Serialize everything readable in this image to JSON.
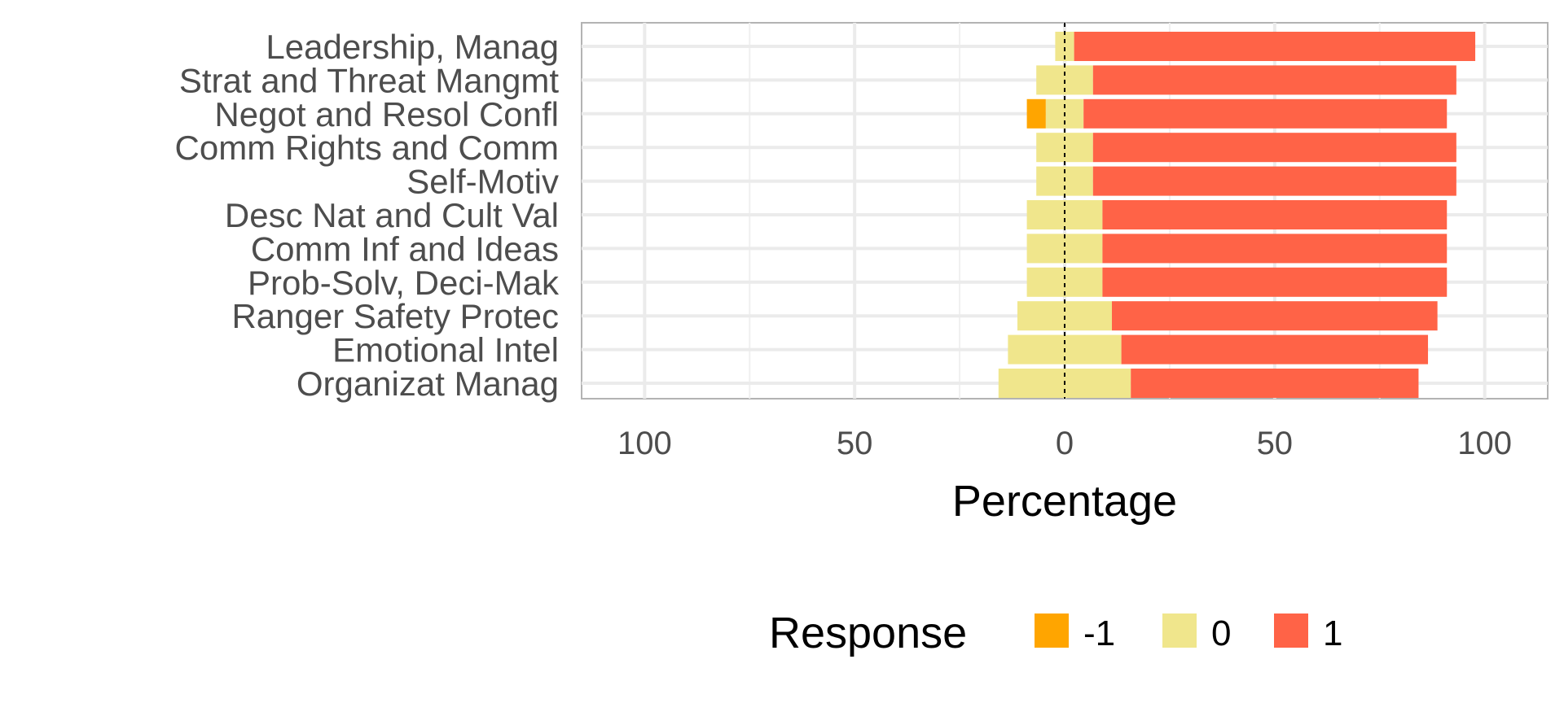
{
  "chart_data": {
    "type": "bar",
    "orientation": "horizontal-diverging",
    "xlabel": "Percentage",
    "xlim": [
      -115,
      115
    ],
    "x_ticks": [
      -100,
      -50,
      0,
      50,
      100
    ],
    "x_tick_labels": [
      "100",
      "50",
      "0",
      "50",
      "100"
    ],
    "grid": true,
    "legend": {
      "title": "Response",
      "placement": "bottom"
    },
    "categories": [
      "Leadership, Manag",
      "Strat and Threat Mangmt",
      "Negot and Resol Confl",
      "Comm Rights and Comm",
      "Self-Motiv",
      "Desc Nat and Cult Val",
      "Comm Inf and Ideas",
      "Prob-Solv, Deci-Mak",
      "Ranger Safety Protec",
      "Emotional Intel",
      "Organizat Manag"
    ],
    "series": [
      {
        "name": "-1",
        "color": "#FFA500",
        "values": [
          0,
          0,
          4.5,
          0,
          0,
          0,
          0,
          0,
          0,
          0,
          0
        ]
      },
      {
        "name": "0",
        "color": "#F0E68C",
        "values": [
          4.5,
          13.5,
          9,
          13.5,
          13.5,
          18,
          18,
          18,
          22.5,
          27,
          31.5
        ]
      },
      {
        "name": "1",
        "color": "#FF6347",
        "values": [
          95.5,
          86.5,
          86.5,
          86.5,
          86.5,
          82,
          82,
          82,
          77.5,
          73,
          68.5
        ]
      }
    ]
  }
}
